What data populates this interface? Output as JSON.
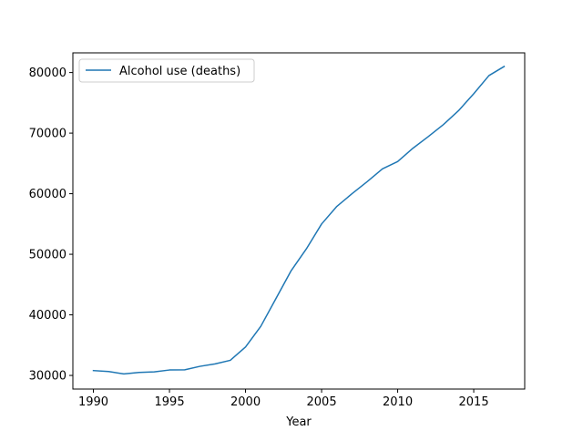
{
  "chart_data": {
    "type": "line",
    "title": "",
    "xlabel": "Year",
    "ylabel": "",
    "xlim": [
      1988.65,
      2018.35
    ],
    "ylim": [
      27750,
      83250
    ],
    "xticks": [
      1990,
      1995,
      2000,
      2005,
      2010,
      2015
    ],
    "yticks": [
      30000,
      40000,
      50000,
      60000,
      70000,
      80000
    ],
    "xtick_labels": [
      "1990",
      "1995",
      "2000",
      "2005",
      "2010",
      "2015"
    ],
    "ytick_labels": [
      "30000",
      "40000",
      "50000",
      "60000",
      "70000",
      "80000"
    ],
    "grid": false,
    "legend_position": "upper left",
    "x": [
      1990,
      1991,
      1992,
      1993,
      1994,
      1995,
      1996,
      1997,
      1998,
      1999,
      2000,
      2001,
      2002,
      2003,
      2004,
      2005,
      2006,
      2007,
      2008,
      2009,
      2010,
      2011,
      2012,
      2013,
      2014,
      2015,
      2016,
      2017
    ],
    "series": [
      {
        "name": "Alcohol use (deaths)",
        "color": "#1f77b4",
        "values": [
          30800,
          30650,
          30250,
          30500,
          30580,
          30900,
          30930,
          31500,
          31900,
          32500,
          34700,
          38100,
          42700,
          47300,
          50900,
          55000,
          57900,
          60000,
          62000,
          64100,
          65300,
          67500,
          69400,
          71400,
          73700,
          76500,
          79500,
          81000
        ]
      }
    ]
  }
}
